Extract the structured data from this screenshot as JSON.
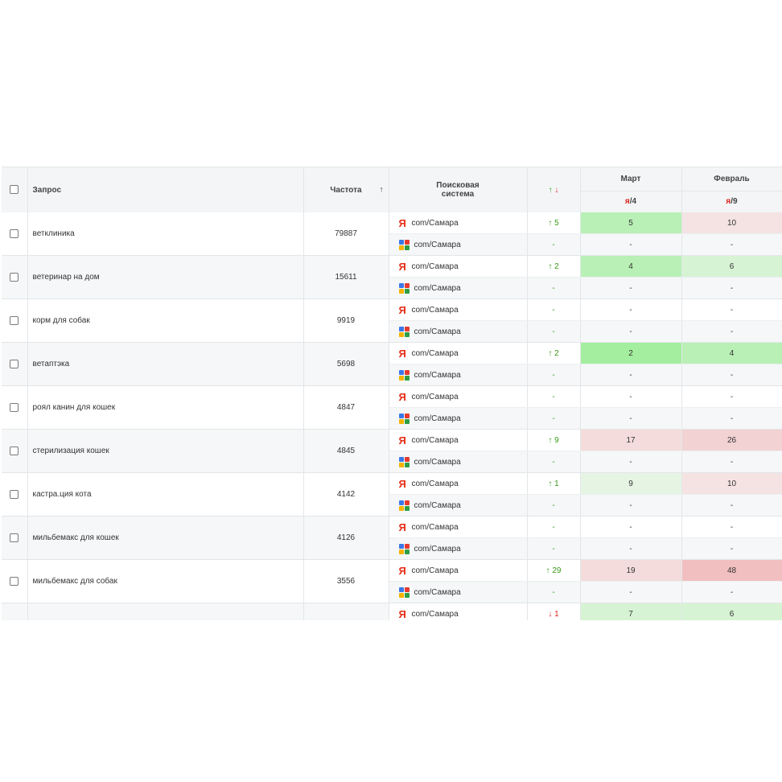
{
  "header": {
    "query": "Запрос",
    "frequency": "Частота",
    "sort_arrow": "↑",
    "engine_line1": "Поисковая",
    "engine_line2": "система",
    "trend_up": "↑",
    "trend_down": "↓",
    "month1": "Март",
    "month2": "Февраль",
    "month1_sub_y": "я",
    "month1_sub_rest": "/4",
    "month2_sub_y": "я",
    "month2_sub_rest": "/9"
  },
  "engines": {
    "yandex_label": "com/Самара",
    "google_label": "com/Самара",
    "yandex_icon": "yandex-icon",
    "google_icon": "google-icon"
  },
  "colors": {
    "green_strong": "#a4eea0",
    "green": "#b8f0b5",
    "green_light": "#d6f4d3",
    "green_pale": "#e6f4e4",
    "red_pale": "#f5e3e4",
    "red_light": "#f4dcdd",
    "red": "#f2d2d3",
    "red_strong": "#f2bfc1"
  },
  "rows": [
    {
      "query": "ветклиника",
      "freq": "79887",
      "y": {
        "trend": "↑ 5",
        "dir": "up",
        "m1": "5",
        "m1c": "#b8f0b5",
        "m2": "10",
        "m2c": "#f5e3e4"
      },
      "g": {
        "trend": "-",
        "m1": "-",
        "m2": "-"
      }
    },
    {
      "query": "ветеринар на дом",
      "freq": "15611",
      "y": {
        "trend": "↑ 2",
        "dir": "up",
        "m1": "4",
        "m1c": "#b8f0b5",
        "m2": "6",
        "m2c": "#d6f4d3"
      },
      "g": {
        "trend": "-",
        "m1": "-",
        "m2": "-"
      }
    },
    {
      "query": "корм для собак",
      "freq": "9919",
      "y": {
        "trend": "-",
        "dir": "none",
        "m1": "-",
        "m1c": "",
        "m2": "-",
        "m2c": ""
      },
      "g": {
        "trend": "-",
        "m1": "-",
        "m2": "-"
      }
    },
    {
      "query": "ветаптэка",
      "freq": "5698",
      "y": {
        "trend": "↑ 2",
        "dir": "up",
        "m1": "2",
        "m1c": "#a4eea0",
        "m2": "4",
        "m2c": "#b8f0b5"
      },
      "g": {
        "trend": "-",
        "m1": "-",
        "m2": "-"
      }
    },
    {
      "query": "роял канин для кошек",
      "freq": "4847",
      "y": {
        "trend": "-",
        "dir": "none",
        "m1": "-",
        "m1c": "",
        "m2": "-",
        "m2c": ""
      },
      "g": {
        "trend": "-",
        "m1": "-",
        "m2": "-"
      }
    },
    {
      "query": "стерилизация кошек",
      "freq": "4845",
      "y": {
        "trend": "↑ 9",
        "dir": "up",
        "m1": "17",
        "m1c": "#f4dcdd",
        "m2": "26",
        "m2c": "#f2d2d3"
      },
      "g": {
        "trend": "-",
        "m1": "-",
        "m2": "-"
      }
    },
    {
      "query": "кастра.ция кота",
      "freq": "4142",
      "y": {
        "trend": "↑ 1",
        "dir": "up",
        "m1": "9",
        "m1c": "#e6f4e4",
        "m2": "10",
        "m2c": "#f5e3e4"
      },
      "g": {
        "trend": "-",
        "m1": "-",
        "m2": "-"
      }
    },
    {
      "query": "мильбемакс для кошек",
      "freq": "4126",
      "y": {
        "trend": "-",
        "dir": "none",
        "m1": "-",
        "m1c": "",
        "m2": "-",
        "m2c": ""
      },
      "g": {
        "trend": "-",
        "m1": "-",
        "m2": "-"
      }
    },
    {
      "query": "мильбемакс для собак",
      "freq": "3556",
      "y": {
        "trend": "↑ 29",
        "dir": "up",
        "m1": "19",
        "m1c": "#f4dcdd",
        "m2": "48",
        "m2c": "#f2bfc1"
      },
      "g": {
        "trend": "-",
        "m1": "-",
        "m2": "-"
      }
    },
    {
      "query": "",
      "freq": "",
      "y": {
        "trend": "↓ 1",
        "dir": "down",
        "m1": "7",
        "m1c": "#d6f4d3",
        "m2": "6",
        "m2c": "#d6f4d3"
      },
      "g": {
        "trend": "-",
        "m1": "-",
        "m2": "-"
      }
    }
  ]
}
